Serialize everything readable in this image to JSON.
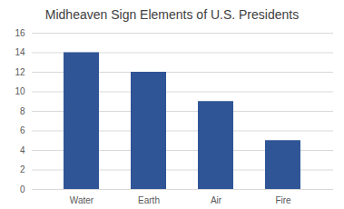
{
  "chart_data": {
    "type": "bar",
    "title": "Midheaven Sign Elements of U.S. Presidents",
    "categories": [
      "Water",
      "Earth",
      "Air",
      "Fire"
    ],
    "values": [
      14,
      12,
      9,
      5
    ],
    "color": "#2f5597",
    "ylim": [
      0,
      16
    ],
    "yticks": [
      0,
      2,
      4,
      6,
      8,
      10,
      12,
      14,
      16
    ],
    "grid": true
  }
}
